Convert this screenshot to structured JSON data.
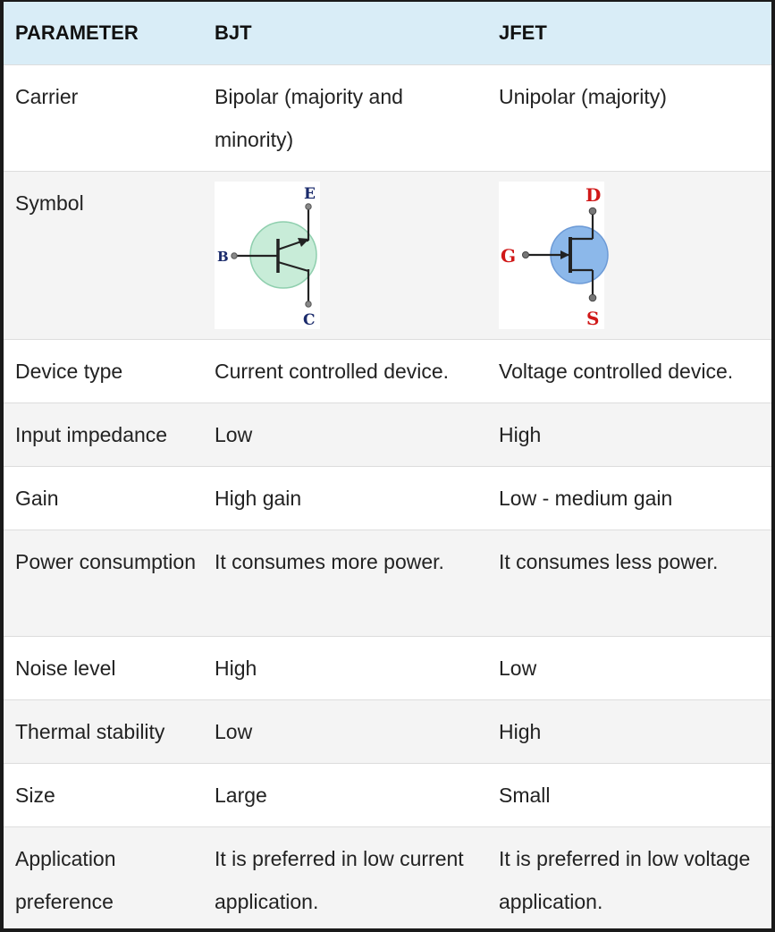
{
  "table": {
    "headers": [
      "PARAMETER",
      "BJT",
      "JFET"
    ],
    "rows": [
      {
        "parameter": "Carrier",
        "bjt": "Bipolar (majority and minority)",
        "jfet": "Unipolar (majority)"
      },
      {
        "parameter": "Symbol",
        "bjt_symbol": {
          "icon": "npn-transistor-symbol-icon",
          "labels": [
            "E",
            "B",
            "C"
          ],
          "fill": "#c8ecd8",
          "label_color": "#1a2a6b"
        },
        "jfet_symbol": {
          "icon": "jfet-transistor-symbol-icon",
          "labels": [
            "D",
            "G",
            "S"
          ],
          "fill": "#8cb8ea",
          "label_color": "#d01818"
        }
      },
      {
        "parameter": "Device type",
        "bjt": "Current controlled device.",
        "jfet": "Voltage controlled device."
      },
      {
        "parameter": "Input impedance",
        "bjt": "Low",
        "jfet": "High"
      },
      {
        "parameter": "Gain",
        "bjt": "High gain",
        "jfet": "Low - medium gain"
      },
      {
        "parameter": "Power consumption",
        "bjt": "It consumes more power.",
        "jfet": "It consumes less power."
      },
      {
        "parameter": "Noise level",
        "bjt": "High",
        "jfet": "Low"
      },
      {
        "parameter": "Thermal stability",
        "bjt": "Low",
        "jfet": "High"
      },
      {
        "parameter": "Size",
        "bjt": "Large",
        "jfet": "Small"
      },
      {
        "parameter": "Application preference",
        "bjt": "It is preferred in low current application.",
        "jfet": "It is preferred in low voltage application."
      }
    ]
  },
  "colors": {
    "header_bg": "#d9edf7",
    "row_alt_bg": "#f4f4f4",
    "border": "#dddddd",
    "frame": "#1a1a1a"
  }
}
